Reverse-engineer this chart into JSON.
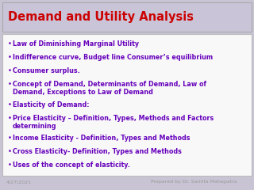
{
  "title": "Demand and Utility Analysis",
  "title_color": "#cc0000",
  "title_bg_color": "#c9c4d8",
  "content_bg_color": "#f8f8f8",
  "outer_bg_color": "#c8c4d4",
  "bullet_color": "#6600bb",
  "footer_left": "4/27/2021",
  "footer_right": "Prepared by Dr. Samita Mahapatra",
  "footer_color": "#999999",
  "bullets": [
    "Law of Diminishing Marginal Utility",
    "Indifference curve, Budget line Consumer’s equilibrium",
    "Consumer surplus.",
    "Concept of Demand, Determinants of Demand, Law of\n    Demand, Exceptions to Law of Demand",
    "Elasticity of Demand:",
    "Price Elasticity – Definition, Types, Methods and Factors\n    determining",
    "Income Elasticity - Definition, Types and Methods",
    "Cross Elasticity- Definition, Types and Methods",
    "Uses of the concept of elasticity."
  ],
  "title_fontsize": 10.5,
  "bullet_fontsize": 5.8,
  "footer_fontsize": 4.5
}
